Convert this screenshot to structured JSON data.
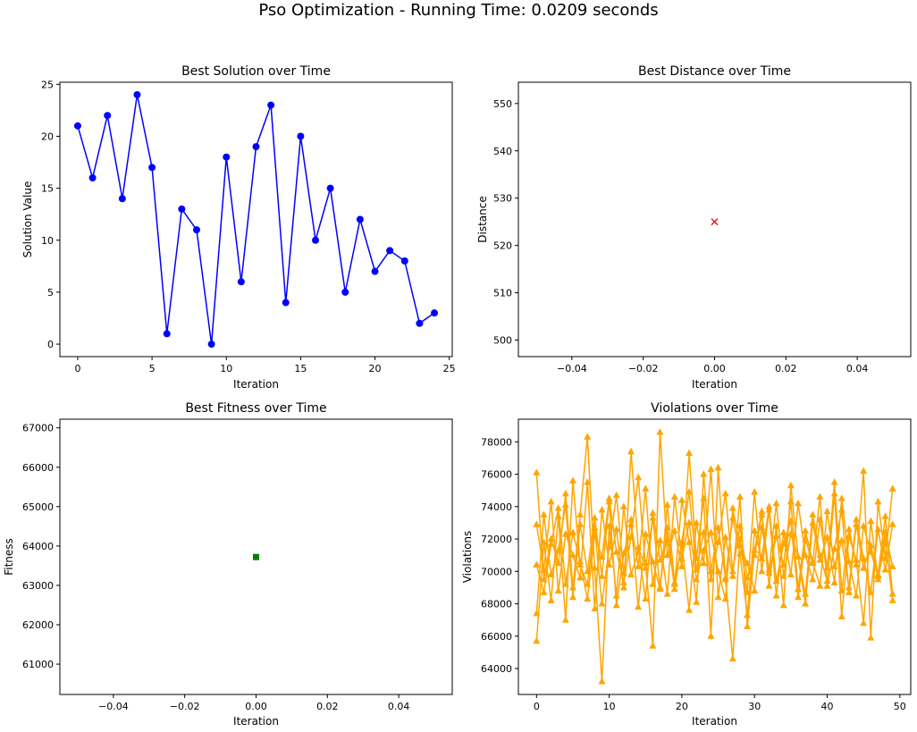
{
  "figure_title": "Pso Optimization - Running Time: 0.0209 seconds",
  "chart_data": [
    {
      "type": "line",
      "title": "Best Solution over Time",
      "xlabel": "Iteration",
      "ylabel": "Solution Value",
      "marker": "circle",
      "color": "#0000ff",
      "x": [
        0,
        1,
        2,
        3,
        4,
        5,
        6,
        7,
        8,
        9,
        10,
        11,
        12,
        13,
        14,
        15,
        16,
        17,
        18,
        19,
        20,
        21,
        22,
        23,
        24
      ],
      "y": [
        21,
        16,
        22,
        14,
        24,
        17,
        1,
        13,
        11,
        0,
        18,
        6,
        19,
        23,
        4,
        20,
        10,
        15,
        5,
        12,
        7,
        9,
        8,
        2,
        3
      ],
      "xlim": [
        -1.2,
        25.2
      ],
      "ylim": [
        -1.2,
        25.2
      ],
      "xticks": [
        0,
        5,
        10,
        15,
        20,
        25
      ],
      "yticks": [
        0,
        5,
        10,
        15,
        20,
        25
      ],
      "xtick_labels": [
        "0",
        "5",
        "10",
        "15",
        "20",
        "25"
      ],
      "ytick_labels": [
        "0",
        "5",
        "10",
        "15",
        "20",
        "25"
      ]
    },
    {
      "type": "scatter",
      "title": "Best Distance over Time",
      "xlabel": "Iteration",
      "ylabel": "Distance",
      "marker": "x",
      "color": "#ff0000",
      "x": [
        0
      ],
      "y": [
        525
      ],
      "xlim": [
        -0.055,
        0.055
      ],
      "ylim": [
        496.5,
        554.5
      ],
      "xticks": [
        -0.04,
        -0.02,
        0,
        0.02,
        0.04
      ],
      "yticks": [
        500,
        510,
        520,
        530,
        540,
        550
      ],
      "xtick_labels": [
        "−0.04",
        "−0.02",
        "0.00",
        "0.02",
        "0.04"
      ],
      "ytick_labels": [
        "500",
        "510",
        "520",
        "530",
        "540",
        "550"
      ]
    },
    {
      "type": "scatter",
      "title": "Best Fitness over Time",
      "xlabel": "Iteration",
      "ylabel": "Fitness",
      "marker": "square",
      "color": "#008000",
      "x": [
        0
      ],
      "y": [
        63720
      ],
      "xlim": [
        -0.055,
        0.055
      ],
      "ylim": [
        60230,
        67220
      ],
      "xticks": [
        -0.04,
        -0.02,
        0,
        0.02,
        0.04
      ],
      "yticks": [
        61000,
        62000,
        63000,
        64000,
        65000,
        66000,
        67000
      ],
      "xtick_labels": [
        "−0.04",
        "−0.02",
        "0.00",
        "0.02",
        "0.04"
      ],
      "ytick_labels": [
        "61000",
        "62000",
        "63000",
        "64000",
        "65000",
        "66000",
        "67000"
      ]
    },
    {
      "type": "line",
      "title": "Violations over Time",
      "xlabel": "Iteration",
      "ylabel": "Violations",
      "marker": "triangle",
      "color": "#ffa500",
      "xlim": [
        -2.5,
        51.5
      ],
      "ylim": [
        62400,
        79400
      ],
      "xticks": [
        0,
        10,
        20,
        30,
        40,
        50
      ],
      "yticks": [
        64000,
        66000,
        68000,
        70000,
        72000,
        74000,
        76000,
        78000
      ],
      "xtick_labels": [
        "0",
        "10",
        "20",
        "30",
        "40",
        "50"
      ],
      "ytick_labels": [
        "64000",
        "66000",
        "68000",
        "70000",
        "72000",
        "74000",
        "76000",
        "78000"
      ],
      "x": [
        0,
        1,
        2,
        3,
        4,
        5,
        6,
        7,
        8,
        9,
        10,
        11,
        12,
        13,
        14,
        15,
        16,
        17,
        18,
        19,
        20,
        21,
        22,
        23,
        24,
        25,
        26,
        27,
        28,
        29,
        30,
        31,
        32,
        33,
        34,
        35,
        36,
        37,
        38,
        39,
        40,
        41,
        42,
        43,
        44,
        45,
        46,
        47,
        48,
        49
      ],
      "series": [
        {
          "values": [
            76100,
            69500,
            72000,
            70500,
            74800,
            69000,
            73500,
            78300,
            70200,
            63200,
            72800,
            68500,
            74000,
            69800,
            71200,
            70500,
            65400,
            78600,
            71000,
            72500,
            70300,
            77300,
            70800,
            74500,
            66000,
            76400,
            69500,
            64600,
            72000,
            68700,
            74900,
            70000,
            73800,
            68500,
            72400,
            69800,
            74200,
            71000,
            69500,
            73200,
            70200,
            75500,
            68800,
            72600,
            70400,
            76200,
            65900,
            74300,
            70800,
            75100
          ]
        },
        {
          "values": [
            65700,
            71800,
            68200,
            73400,
            67000,
            75600,
            70400,
            69200,
            72700,
            68000,
            71500,
            74700,
            69900,
            73200,
            67800,
            72300,
            70600,
            68900,
            74100,
            69300,
            71700,
            67600,
            73000,
            70500,
            76300,
            68400,
            72100,
            69700,
            74600,
            66600,
            71300,
            73700,
            69100,
            72800,
            67900,
            75300,
            70900,
            68600,
            73500,
            71000,
            69400,
            74800,
            67200,
            72200,
            70700,
            66800,
            73100,
            69500,
            71900,
            68200
          ]
        },
        {
          "values": [
            72900,
            70100,
            74300,
            68800,
            72300,
            71000,
            69600,
            75500,
            67700,
            73800,
            70400,
            72600,
            69000,
            77400,
            71500,
            68300,
            73600,
            70700,
            72000,
            69200,
            74400,
            71800,
            68100,
            76000,
            70000,
            72700,
            69600,
            73300,
            71100,
            67300,
            72500,
            70800,
            74000,
            69400,
            71700,
            73100,
            68400,
            72000,
            70500,
            74600,
            69100,
            71400,
            73800,
            68700,
            72900,
            70200,
            71600,
            69800,
            73400,
            68600
          ]
        },
        {
          "values": [
            67400,
            73500,
            69800,
            71300,
            74100,
            68400,
            72900,
            70000,
            73300,
            69700,
            74300,
            67900,
            71100,
            72900,
            70300,
            75100,
            69200,
            71900,
            68600,
            74600,
            70800,
            73000,
            69500,
            71300,
            72400,
            70000,
            68300,
            73900,
            71600,
            70500,
            68800,
            72700,
            70100,
            74200,
            69700,
            72300,
            70900,
            68000,
            73000,
            70700,
            72100,
            69300,
            74500,
            70600,
            68500,
            72800,
            71200,
            69700,
            72400,
            70300
          ]
        },
        {
          "values": [
            70400,
            68700,
            71700,
            73900,
            69200,
            72400,
            70600,
            68300,
            72200,
            70900,
            74500,
            71200,
            69300,
            72100,
            75800,
            70200,
            73300,
            69000,
            72700,
            68900,
            71800,
            74900,
            70100,
            72400,
            69500,
            71800,
            74800,
            70000,
            72800,
            69600,
            71000,
            73500,
            69900,
            72200,
            70400,
            74300,
            68900,
            72500,
            70600,
            69100,
            73700,
            70300,
            71900,
            69000,
            73200,
            70800,
            68700,
            72600,
            70100,
            72900
          ]
        }
      ]
    }
  ]
}
